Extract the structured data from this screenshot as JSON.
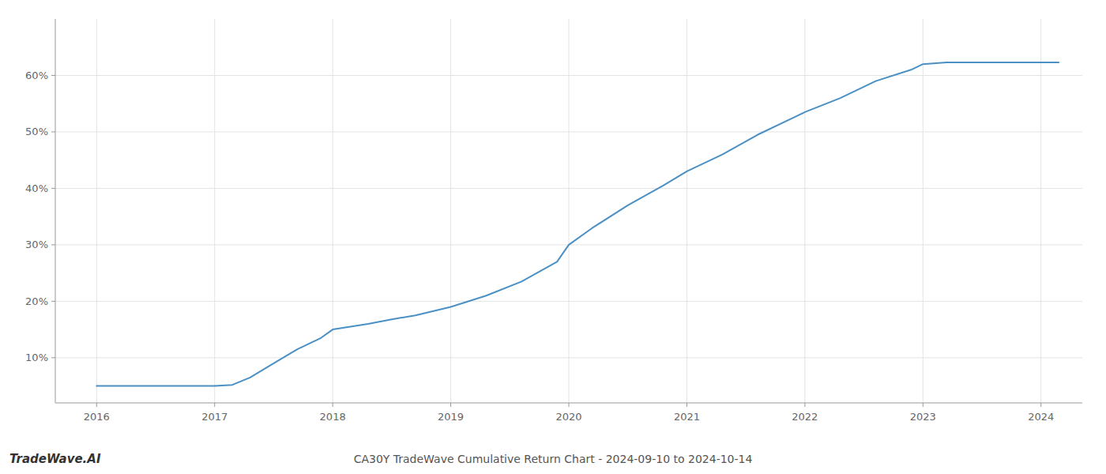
{
  "chart_data": {
    "type": "line",
    "title": "CA30Y TradeWave Cumulative Return Chart - 2024-09-10 to 2024-10-14",
    "annotations": [
      "TradeWave.AI"
    ],
    "x": [
      2016.0,
      2016.2,
      2016.4,
      2016.6,
      2016.8,
      2017.0,
      2017.15,
      2017.3,
      2017.5,
      2017.7,
      2017.9,
      2018.0,
      2018.3,
      2018.5,
      2018.7,
      2019.0,
      2019.3,
      2019.6,
      2019.9,
      2020.0,
      2020.2,
      2020.5,
      2020.8,
      2021.0,
      2021.3,
      2021.6,
      2021.9,
      2022.0,
      2022.3,
      2022.6,
      2022.9,
      2023.0,
      2023.2,
      2023.5,
      2023.7,
      2023.9,
      2024.0,
      2024.15
    ],
    "values": [
      5.0,
      5.0,
      5.0,
      5.0,
      5.0,
      5.0,
      5.2,
      6.5,
      9.0,
      11.5,
      13.5,
      15.0,
      16.0,
      16.8,
      17.5,
      19.0,
      21.0,
      23.5,
      27.0,
      30.0,
      33.0,
      37.0,
      40.5,
      43.0,
      46.0,
      49.5,
      52.5,
      53.5,
      56.0,
      59.0,
      61.0,
      62.0,
      62.3,
      62.3,
      62.3,
      62.3,
      62.3,
      62.3
    ],
    "color": "#4a90c4",
    "xlim": [
      2015.65,
      2024.35
    ],
    "ylim": [
      2,
      70
    ],
    "xticks": [
      2016,
      2017,
      2018,
      2019,
      2020,
      2021,
      2022,
      2023,
      2024
    ],
    "yticks": [
      {
        "value": 10,
        "label": "10%"
      },
      {
        "value": 20,
        "label": "20%"
      },
      {
        "value": 30,
        "label": "30%"
      },
      {
        "value": 40,
        "label": "40%"
      },
      {
        "value": 50,
        "label": "50%"
      },
      {
        "value": 60,
        "label": "60%"
      }
    ],
    "grid": true
  }
}
